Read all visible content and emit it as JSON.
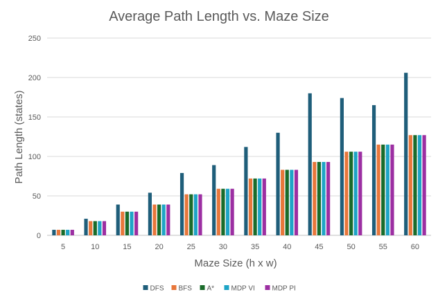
{
  "chart_data": {
    "type": "bar",
    "title": "Average Path Length vs. Maze Size",
    "xlabel": "Maze Size (h x w)",
    "ylabel": "Path Length (states)",
    "ylim": [
      0,
      250
    ],
    "yticks": [
      0,
      50,
      100,
      150,
      200,
      250
    ],
    "grid": true,
    "legend_position": "bottom",
    "categories": [
      "5",
      "10",
      "15",
      "20",
      "25",
      "30",
      "35",
      "40",
      "45",
      "50",
      "55",
      "60"
    ],
    "series": [
      {
        "name": "DFS",
        "color": "#1f5e7a",
        "values": [
          7,
          21,
          39,
          54,
          79,
          89,
          112,
          130,
          180,
          174,
          165,
          206
        ]
      },
      {
        "name": "BFS",
        "color": "#e8773b",
        "values": [
          7,
          18,
          30,
          39,
          52,
          59,
          72,
          83,
          93,
          106,
          115,
          127
        ]
      },
      {
        "name": "A*",
        "color": "#1a6b2a",
        "values": [
          7,
          18,
          30,
          39,
          52,
          59,
          72,
          83,
          93,
          106,
          115,
          127
        ]
      },
      {
        "name": "MDP VI",
        "color": "#1ea4c6",
        "values": [
          7,
          18,
          30,
          39,
          52,
          59,
          72,
          83,
          93,
          106,
          115,
          127
        ]
      },
      {
        "name": "MDP PI",
        "color": "#9c2fa2",
        "values": [
          7,
          18,
          30,
          39,
          52,
          59,
          72,
          83,
          93,
          106,
          115,
          127
        ]
      }
    ]
  }
}
